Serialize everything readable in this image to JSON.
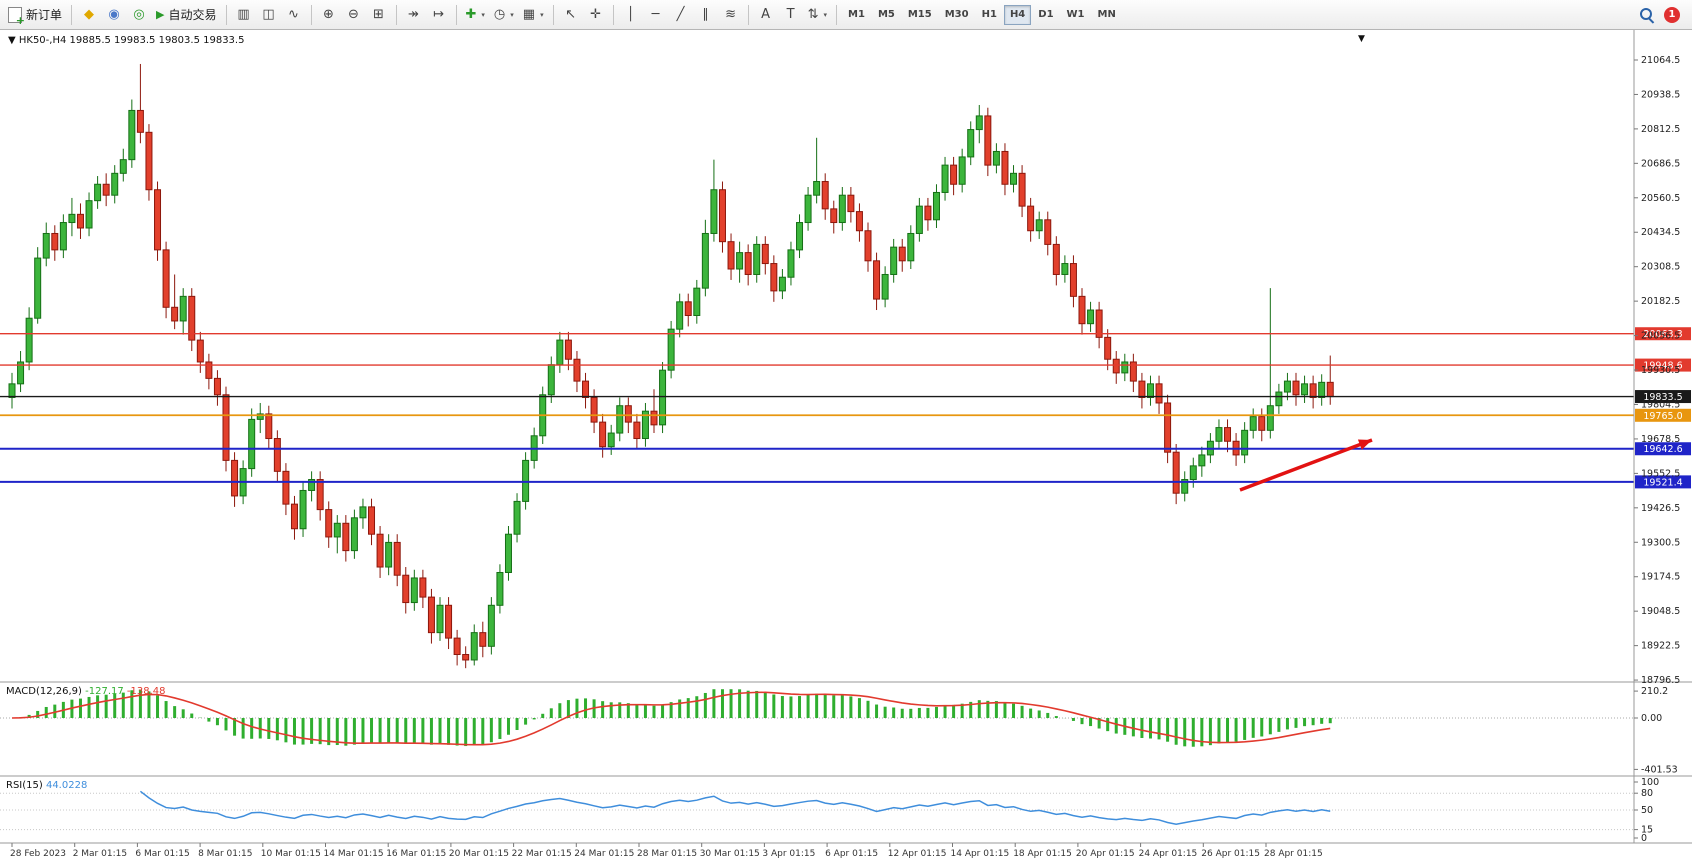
{
  "toolbar": {
    "new_order_label": "新订单",
    "autotrading_label": "自动交易",
    "autotrading_glyph": "▶",
    "notification_count": "1",
    "window_icons": [
      {
        "name": "charts-icon",
        "glyph": "◆",
        "color": "#e0a800"
      },
      {
        "name": "profiles-icon",
        "glyph": "◉",
        "color": "#4a78c8"
      },
      {
        "name": "alerts-icon",
        "glyph": "◎",
        "color": "#2a9a2a"
      }
    ],
    "chart_tools": [
      {
        "name": "bar-chart-icon",
        "glyph": "▥"
      },
      {
        "name": "candlestick-chart-icon",
        "glyph": "◫"
      },
      {
        "name": "line-chart-icon",
        "glyph": "∿"
      },
      {
        "name": "sep"
      },
      {
        "name": "zoom-in-icon",
        "glyph": "⊕"
      },
      {
        "name": "zoom-out-icon",
        "glyph": "⊖"
      },
      {
        "name": "tile-windows-icon",
        "glyph": "⊞"
      },
      {
        "name": "sep"
      },
      {
        "name": "auto-scroll-icon",
        "glyph": "↠"
      },
      {
        "name": "chart-shift-icon",
        "glyph": "↦"
      },
      {
        "name": "sep"
      },
      {
        "name": "indicators-icon",
        "glyph": "✚",
        "color": "#2a9a2a",
        "dropdown": true
      },
      {
        "name": "periods-icon",
        "glyph": "◷",
        "dropdown": true
      },
      {
        "name": "templates-icon",
        "glyph": "▦",
        "dropdown": true
      }
    ],
    "draw_tools": [
      {
        "name": "cursor-icon",
        "glyph": "↖"
      },
      {
        "name": "crosshair-icon",
        "glyph": "✛"
      },
      {
        "name": "sep"
      },
      {
        "name": "vertical-line-icon",
        "glyph": "│"
      },
      {
        "name": "horizontal-line-icon",
        "glyph": "─"
      },
      {
        "name": "trendline-icon",
        "glyph": "╱"
      },
      {
        "name": "equidistant-channel-icon",
        "glyph": "∥"
      },
      {
        "name": "fibonacci-icon",
        "glyph": "≋"
      },
      {
        "name": "sep"
      },
      {
        "name": "text-icon",
        "glyph": "A"
      },
      {
        "name": "text-label-icon",
        "glyph": "T"
      },
      {
        "name": "arrows-icon",
        "glyph": "⇅",
        "dropdown": true
      }
    ],
    "timeframes": [
      "M1",
      "M5",
      "M15",
      "M30",
      "H1",
      "H4",
      "D1",
      "W1",
      "MN"
    ],
    "active_timeframe": "H4"
  },
  "symbol_header": {
    "collapse_glyph": "▼",
    "symbol": "HK50-,H4",
    "open": "19885.5",
    "high": "19983.5",
    "low": "19803.5",
    "close": "19833.5"
  },
  "chart_data": {
    "type": "candlestick",
    "symbol": "HK50-",
    "timeframe": "H4",
    "colors": {
      "up": "#3cb53c",
      "up_border": "#156f15",
      "down": "#e2402c",
      "down_border": "#8c170c"
    },
    "y_axis_labels": [
      "21064.5",
      "20938.5",
      "20812.5",
      "20686.5",
      "20560.5",
      "20434.5",
      "20308.5",
      "20182.5",
      "20056.5",
      "19930.5",
      "19804.5",
      "19678.5",
      "19552.5",
      "19426.5",
      "19300.5",
      "19174.5",
      "19048.5",
      "18922.5",
      "18796.5"
    ],
    "levels": [
      {
        "price": 20063.3,
        "label": "20063.3",
        "color": "#e23a2e",
        "width": 1.4
      },
      {
        "price": 19948.6,
        "label": "19948.6",
        "color": "#e23a2e",
        "width": 1.4
      },
      {
        "price": 19833.5,
        "label": "19833.5",
        "color": "#1a1a1a",
        "width": 1.4
      },
      {
        "price": 19765.0,
        "label": "19765.0",
        "color": "#e8960f",
        "width": 1.8
      },
      {
        "price": 19642.6,
        "label": "19642.6",
        "color": "#1f24c8",
        "width": 2
      },
      {
        "price": 19521.4,
        "label": "19521.4",
        "color": "#1f24c8",
        "width": 2
      }
    ],
    "candles": [
      [
        19830,
        19920,
        19790,
        19880
      ],
      [
        19880,
        20000,
        19850,
        19960
      ],
      [
        19960,
        20160,
        19930,
        20120
      ],
      [
        20120,
        20380,
        20100,
        20340
      ],
      [
        20340,
        20470,
        20310,
        20430
      ],
      [
        20430,
        20460,
        20330,
        20370
      ],
      [
        20370,
        20500,
        20340,
        20470
      ],
      [
        20470,
        20560,
        20420,
        20500
      ],
      [
        20500,
        20540,
        20410,
        20450
      ],
      [
        20450,
        20580,
        20420,
        20550
      ],
      [
        20550,
        20640,
        20520,
        20610
      ],
      [
        20610,
        20650,
        20530,
        20570
      ],
      [
        20570,
        20680,
        20540,
        20650
      ],
      [
        20650,
        20740,
        20620,
        20700
      ],
      [
        20700,
        20920,
        20670,
        20880
      ],
      [
        20880,
        21050,
        20760,
        20800
      ],
      [
        20800,
        20830,
        20550,
        20590
      ],
      [
        20590,
        20620,
        20330,
        20370
      ],
      [
        20370,
        20400,
        20120,
        20160
      ],
      [
        20160,
        20280,
        20080,
        20110
      ],
      [
        20110,
        20230,
        20060,
        20200
      ],
      [
        20200,
        20230,
        20000,
        20040
      ],
      [
        20040,
        20070,
        19920,
        19960
      ],
      [
        19960,
        19990,
        19860,
        19900
      ],
      [
        19900,
        19930,
        19800,
        19840
      ],
      [
        19840,
        19870,
        19560,
        19600
      ],
      [
        19600,
        19630,
        19430,
        19470
      ],
      [
        19470,
        19600,
        19440,
        19570
      ],
      [
        19570,
        19790,
        19540,
        19750
      ],
      [
        19750,
        19810,
        19700,
        19770
      ],
      [
        19770,
        19800,
        19640,
        19680
      ],
      [
        19680,
        19710,
        19520,
        19560
      ],
      [
        19560,
        19590,
        19400,
        19440
      ],
      [
        19440,
        19470,
        19310,
        19350
      ],
      [
        19350,
        19520,
        19320,
        19490
      ],
      [
        19490,
        19560,
        19450,
        19530
      ],
      [
        19530,
        19560,
        19380,
        19420
      ],
      [
        19420,
        19450,
        19280,
        19320
      ],
      [
        19320,
        19400,
        19260,
        19370
      ],
      [
        19370,
        19400,
        19230,
        19270
      ],
      [
        19270,
        19420,
        19240,
        19390
      ],
      [
        19390,
        19460,
        19350,
        19430
      ],
      [
        19430,
        19460,
        19290,
        19330
      ],
      [
        19330,
        19360,
        19170,
        19210
      ],
      [
        19210,
        19330,
        19180,
        19300
      ],
      [
        19300,
        19330,
        19140,
        19180
      ],
      [
        19180,
        19210,
        19040,
        19080
      ],
      [
        19080,
        19200,
        19050,
        19170
      ],
      [
        19170,
        19200,
        19060,
        19100
      ],
      [
        19100,
        19130,
        18930,
        18970
      ],
      [
        18970,
        19100,
        18940,
        19070
      ],
      [
        19070,
        19100,
        18910,
        18950
      ],
      [
        18950,
        18980,
        18850,
        18890
      ],
      [
        18890,
        18920,
        18840,
        18870
      ],
      [
        18870,
        19000,
        18850,
        18970
      ],
      [
        18970,
        19010,
        18880,
        18920
      ],
      [
        18920,
        19100,
        18890,
        19070
      ],
      [
        19070,
        19220,
        19040,
        19190
      ],
      [
        19190,
        19360,
        19160,
        19330
      ],
      [
        19330,
        19480,
        19300,
        19450
      ],
      [
        19450,
        19630,
        19420,
        19600
      ],
      [
        19600,
        19720,
        19570,
        19690
      ],
      [
        19690,
        19870,
        19660,
        19840
      ],
      [
        19840,
        19980,
        19810,
        19950
      ],
      [
        19950,
        20070,
        19920,
        20040
      ],
      [
        20040,
        20070,
        19930,
        19970
      ],
      [
        19970,
        20000,
        19850,
        19890
      ],
      [
        19890,
        19920,
        19790,
        19830
      ],
      [
        19830,
        19860,
        19700,
        19740
      ],
      [
        19740,
        19770,
        19610,
        19650
      ],
      [
        19650,
        19730,
        19620,
        19700
      ],
      [
        19700,
        19830,
        19670,
        19800
      ],
      [
        19800,
        19830,
        19700,
        19740
      ],
      [
        19740,
        19770,
        19640,
        19680
      ],
      [
        19680,
        19810,
        19650,
        19780
      ],
      [
        19780,
        19860,
        19700,
        19730
      ],
      [
        19730,
        19960,
        19700,
        19930
      ],
      [
        19930,
        20110,
        19900,
        20080
      ],
      [
        20080,
        20210,
        20050,
        20180
      ],
      [
        20180,
        20210,
        20090,
        20130
      ],
      [
        20130,
        20260,
        20100,
        20230
      ],
      [
        20230,
        20480,
        20200,
        20430
      ],
      [
        20430,
        20700,
        20400,
        20590
      ],
      [
        20590,
        20620,
        20360,
        20400
      ],
      [
        20400,
        20430,
        20260,
        20300
      ],
      [
        20300,
        20400,
        20250,
        20360
      ],
      [
        20360,
        20390,
        20240,
        20280
      ],
      [
        20280,
        20420,
        20250,
        20390
      ],
      [
        20390,
        20420,
        20280,
        20320
      ],
      [
        20320,
        20350,
        20180,
        20220
      ],
      [
        20220,
        20300,
        20190,
        20270
      ],
      [
        20270,
        20400,
        20240,
        20370
      ],
      [
        20370,
        20500,
        20340,
        20470
      ],
      [
        20470,
        20600,
        20440,
        20570
      ],
      [
        20570,
        20780,
        20540,
        20620
      ],
      [
        20620,
        20650,
        20480,
        20520
      ],
      [
        20520,
        20550,
        20430,
        20470
      ],
      [
        20470,
        20600,
        20440,
        20570
      ],
      [
        20570,
        20600,
        20470,
        20510
      ],
      [
        20510,
        20540,
        20400,
        20440
      ],
      [
        20440,
        20470,
        20290,
        20330
      ],
      [
        20330,
        20360,
        20150,
        20190
      ],
      [
        20190,
        20310,
        20160,
        20280
      ],
      [
        20280,
        20410,
        20250,
        20380
      ],
      [
        20380,
        20410,
        20290,
        20330
      ],
      [
        20330,
        20460,
        20300,
        20430
      ],
      [
        20430,
        20560,
        20400,
        20530
      ],
      [
        20530,
        20560,
        20440,
        20480
      ],
      [
        20480,
        20610,
        20450,
        20580
      ],
      [
        20580,
        20710,
        20550,
        20680
      ],
      [
        20680,
        20710,
        20570,
        20610
      ],
      [
        20610,
        20740,
        20580,
        20710
      ],
      [
        20710,
        20840,
        20680,
        20810
      ],
      [
        20810,
        20900,
        20760,
        20860
      ],
      [
        20860,
        20890,
        20640,
        20680
      ],
      [
        20680,
        20760,
        20650,
        20730
      ],
      [
        20730,
        20760,
        20570,
        20610
      ],
      [
        20610,
        20680,
        20580,
        20650
      ],
      [
        20650,
        20680,
        20490,
        20530
      ],
      [
        20530,
        20560,
        20400,
        20440
      ],
      [
        20440,
        20510,
        20410,
        20480
      ],
      [
        20480,
        20510,
        20350,
        20390
      ],
      [
        20390,
        20420,
        20240,
        20280
      ],
      [
        20280,
        20350,
        20250,
        20320
      ],
      [
        20320,
        20350,
        20160,
        20200
      ],
      [
        20200,
        20230,
        20060,
        20100
      ],
      [
        20100,
        20180,
        20070,
        20150
      ],
      [
        20150,
        20180,
        20010,
        20050
      ],
      [
        20050,
        20080,
        19930,
        19970
      ],
      [
        19970,
        20000,
        19880,
        19920
      ],
      [
        19920,
        19990,
        19890,
        19960
      ],
      [
        19960,
        19990,
        19850,
        19890
      ],
      [
        19890,
        19920,
        19790,
        19830
      ],
      [
        19830,
        19910,
        19800,
        19880
      ],
      [
        19880,
        19910,
        19770,
        19810
      ],
      [
        19810,
        19840,
        19590,
        19630
      ],
      [
        19630,
        19660,
        19440,
        19480
      ],
      [
        19480,
        19560,
        19450,
        19530
      ],
      [
        19530,
        19610,
        19500,
        19580
      ],
      [
        19580,
        19650,
        19540,
        19620
      ],
      [
        19620,
        19700,
        19590,
        19670
      ],
      [
        19670,
        19750,
        19640,
        19720
      ],
      [
        19720,
        19750,
        19630,
        19670
      ],
      [
        19670,
        19700,
        19580,
        19620
      ],
      [
        19620,
        19740,
        19590,
        19710
      ],
      [
        19710,
        19790,
        19680,
        19760
      ],
      [
        19760,
        19790,
        19670,
        19710
      ],
      [
        19710,
        20230,
        19680,
        19800
      ],
      [
        19800,
        19880,
        19770,
        19850
      ],
      [
        19850,
        19920,
        19820,
        19890
      ],
      [
        19890,
        19920,
        19800,
        19840
      ],
      [
        19840,
        19910,
        19810,
        19880
      ],
      [
        19880,
        19910,
        19790,
        19830
      ],
      [
        19830,
        19915,
        19800,
        19885.5
      ],
      [
        19885.5,
        19983.5,
        19803.5,
        19833.5
      ]
    ],
    "date_labels": [
      "28 Feb 2023",
      "2 Mar 01:15",
      "6 Mar 01:15",
      "8 Mar 01:15",
      "10 Mar 01:15",
      "14 Mar 01:15",
      "16 Mar 01:15",
      "20 Mar 01:15",
      "22 Mar 01:15",
      "24 Mar 01:15",
      "28 Mar 01:15",
      "30 Mar 01:15",
      "3 Apr 01:15",
      "6 Apr 01:15",
      "12 Apr 01:15",
      "14 Apr 01:15",
      "18 Apr 01:15",
      "20 Apr 01:15",
      "24 Apr 01:15",
      "26 Apr 01:15",
      "28 Apr 01:15"
    ],
    "indicators": {
      "macd": {
        "label": "MACD(12,26,9)",
        "main_value": "-127.17",
        "signal_value": "-138.48",
        "scale_labels": [
          "210.2",
          "0.00",
          "-401.53"
        ],
        "histogram_color": "#2fae2f",
        "signal_color": "#e23a2e",
        "params": [
          12,
          26,
          9
        ]
      },
      "rsi": {
        "label": "RSI(15)",
        "value": "44.0228",
        "scale_labels": [
          "100",
          "80",
          "50",
          "15",
          "0"
        ],
        "level_lines": [
          80,
          50,
          15
        ],
        "line_color": "#3f8edc",
        "period": 15
      }
    },
    "annotation_arrow": {
      "color": "#e21212",
      "from": [
        1240,
        460
      ],
      "to": [
        1372,
        410
      ]
    },
    "shift_marker_glyph": "▼"
  }
}
